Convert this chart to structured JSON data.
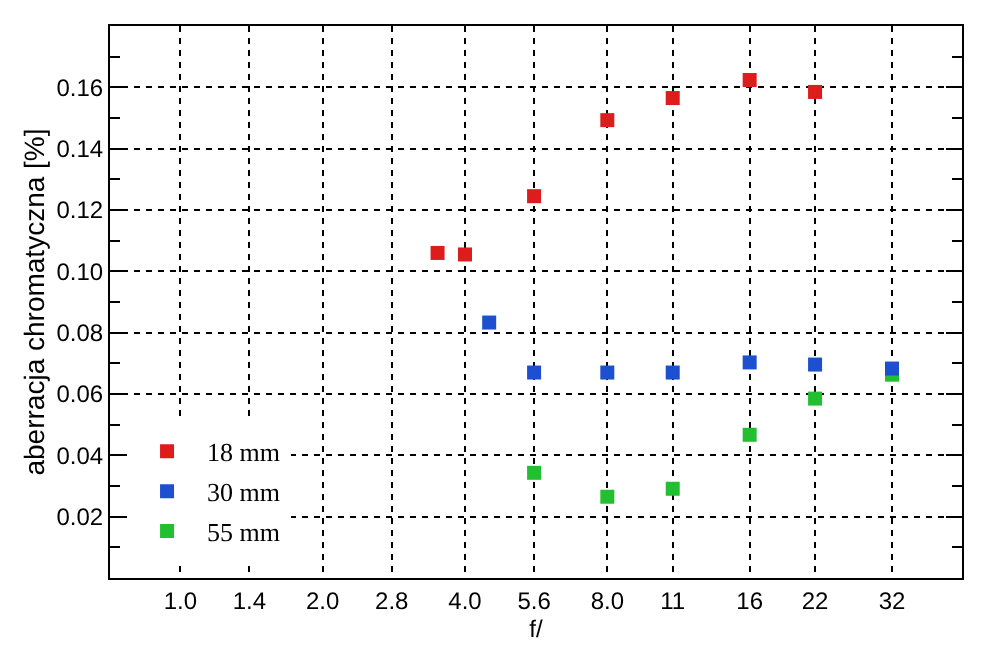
{
  "chart_data": {
    "type": "scatter",
    "xlabel": "f/",
    "ylabel": "aberracja chromatyczna [%]",
    "log": "x",
    "xlim": [
      0.71,
      45
    ],
    "ylim": [
      0,
      0.18
    ],
    "xticks": [
      {
        "value": 1,
        "label": "1.0"
      },
      1.4,
      {
        "value": 2,
        "label": "2.0"
      },
      2.8,
      {
        "value": 4,
        "label": "4.0"
      },
      5.6,
      {
        "value": 8,
        "label": "8.0"
      },
      11,
      16,
      22,
      32
    ],
    "yticks": [
      {
        "value": 0.01,
        "label": null
      },
      0.02,
      {
        "value": 0.03,
        "label": null
      },
      0.04,
      {
        "value": 0.05,
        "label": null
      },
      0.06,
      {
        "value": 0.07,
        "label": null
      },
      0.08,
      {
        "value": 0.09,
        "label": null
      },
      {
        "value": 0.1,
        "label": "0.10"
      },
      {
        "value": 0.11,
        "label": null
      },
      0.12,
      {
        "value": 0.13,
        "label": null
      },
      0.14,
      {
        "value": 0.15,
        "label": null
      },
      0.16,
      {
        "value": 0.17,
        "label": null
      }
    ],
    "grid": true,
    "legend": "bottom left",
    "marker": "square",
    "series": [
      {
        "name": "18 mm",
        "color": "#dd1c1c",
        "x": [
          3.5,
          4,
          5.6,
          8,
          11,
          16,
          22
        ],
        "values": [
          0.106,
          0.1055,
          0.1245,
          0.1493,
          0.1565,
          0.1624,
          0.1585
        ]
      },
      {
        "name": "30 mm",
        "color": "#1c50d0",
        "x": [
          4.5,
          5.6,
          8,
          11,
          16,
          22,
          32
        ],
        "values": [
          0.0833,
          0.067,
          0.067,
          0.067,
          0.0703,
          0.0696,
          0.0683
        ]
      },
      {
        "name": "55 mm",
        "color": "#22c030",
        "x": [
          5.6,
          8,
          11,
          16,
          22,
          32
        ],
        "values": [
          0.0343,
          0.0265,
          0.0291,
          0.0467,
          0.0585,
          0.0663
        ]
      }
    ]
  }
}
